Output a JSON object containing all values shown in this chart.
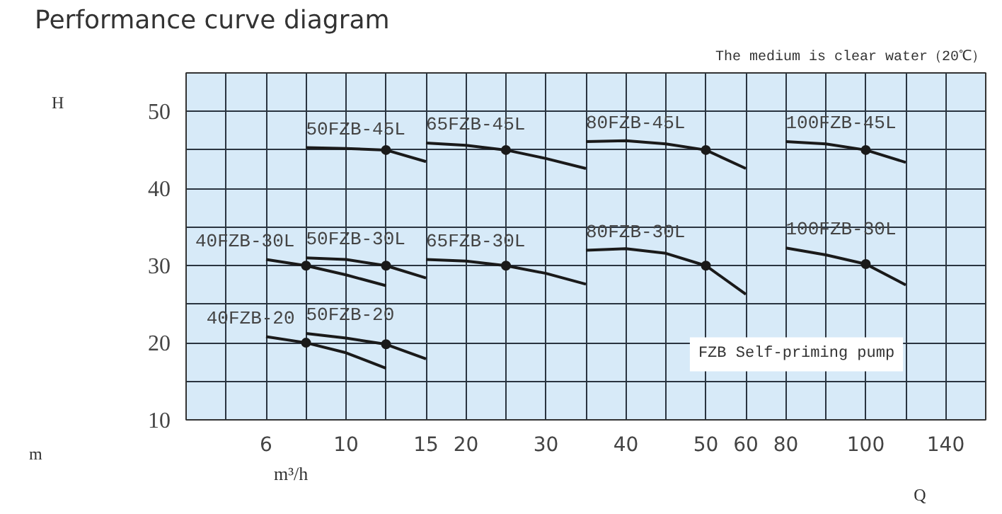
{
  "chart_data": {
    "type": "line",
    "title": "Performance curve diagram",
    "xlabel": "Q",
    "ylabel": "H",
    "annotations": [
      "The medium is clear water（20℃）",
      "FZB Self-priming pump",
      "m",
      "m³/h"
    ],
    "categories": [
      null,
      null,
      "6",
      null,
      "10",
      null,
      "15",
      "20",
      null,
      "30",
      null,
      "40",
      null,
      "50",
      "60",
      "80",
      null,
      "100",
      null,
      "140",
      null
    ],
    "ylim": [
      10,
      55
    ],
    "yticks": [
      10,
      {
        "value": 15,
        "label": null
      },
      20,
      {
        "value": 25,
        "label": null
      },
      30,
      {
        "value": 35,
        "label": null
      },
      40,
      {
        "value": 45,
        "label": null
      },
      50,
      {
        "value": 55,
        "label": null
      }
    ],
    "grid": true,
    "legend": false,
    "series": [
      {
        "name": "50FZB-45L",
        "color": "#1a1a1a",
        "values": [
          null,
          null,
          null,
          45.3,
          45.2,
          45.0,
          43.5,
          null,
          null,
          null,
          null,
          null,
          null,
          null,
          null,
          null,
          null,
          null,
          null,
          null,
          null
        ]
      },
      {
        "name": "65FZB-45L",
        "color": "#1a1a1a",
        "values": [
          null,
          null,
          null,
          null,
          null,
          null,
          45.9,
          45.6,
          45.0,
          43.9,
          42.6,
          null,
          null,
          null,
          null,
          null,
          null,
          null,
          null,
          null,
          null
        ]
      },
      {
        "name": "80FZB-45L",
        "color": "#1a1a1a",
        "values": [
          null,
          null,
          null,
          null,
          null,
          null,
          null,
          null,
          null,
          null,
          46.1,
          46.2,
          45.8,
          45.0,
          42.6,
          null,
          null,
          null,
          null,
          null,
          null
        ]
      },
      {
        "name": "100FZB-45L",
        "color": "#1a1a1a",
        "values": [
          null,
          null,
          null,
          null,
          null,
          null,
          null,
          null,
          null,
          null,
          null,
          null,
          null,
          null,
          null,
          46.1,
          45.8,
          45.0,
          43.4,
          null,
          null
        ]
      },
      {
        "name": "40FZB-30L",
        "color": "#1a1a1a",
        "values": [
          null,
          null,
          30.8,
          30.0,
          28.8,
          27.4,
          null,
          null,
          null,
          null,
          null,
          null,
          null,
          null,
          null,
          null,
          null,
          null,
          null,
          null,
          null
        ]
      },
      {
        "name": "50FZB-30L",
        "color": "#1a1a1a",
        "values": [
          null,
          null,
          null,
          31.0,
          30.8,
          30.0,
          28.4,
          null,
          null,
          null,
          null,
          null,
          null,
          null,
          null,
          null,
          null,
          null,
          null,
          null,
          null
        ]
      },
      {
        "name": "65FZB-30L",
        "color": "#1a1a1a",
        "values": [
          null,
          null,
          null,
          null,
          null,
          null,
          30.8,
          30.6,
          30.0,
          29.0,
          27.6,
          null,
          null,
          null,
          null,
          null,
          null,
          null,
          null,
          null,
          null
        ]
      },
      {
        "name": "80FZB-30L",
        "color": "#1a1a1a",
        "values": [
          null,
          null,
          null,
          null,
          null,
          null,
          null,
          null,
          null,
          null,
          32.0,
          32.2,
          31.6,
          30.0,
          26.3,
          null,
          null,
          null,
          null,
          null,
          null
        ]
      },
      {
        "name": "100FZB-30L",
        "color": "#1a1a1a",
        "values": [
          null,
          null,
          null,
          null,
          null,
          null,
          null,
          null,
          null,
          null,
          null,
          null,
          null,
          null,
          null,
          32.3,
          31.4,
          30.2,
          27.5,
          null,
          null
        ]
      },
      {
        "name": "40FZB-20",
        "color": "#1a1a1a",
        "values": [
          null,
          null,
          20.8,
          20.0,
          18.7,
          16.7,
          null,
          null,
          null,
          null,
          null,
          null,
          null,
          null,
          null,
          null,
          null,
          null,
          null,
          null,
          null
        ]
      },
      {
        "name": "50FZB-20",
        "color": "#1a1a1a",
        "values": [
          null,
          null,
          null,
          21.2,
          20.6,
          19.8,
          17.9,
          null,
          null,
          null,
          null,
          null,
          null,
          null,
          null,
          null,
          null,
          null,
          null,
          null,
          null
        ]
      },
      {
        "type": "scatter",
        "marker": "circle",
        "color": "#1a1a1a",
        "values": [
          null,
          null,
          null,
          null,
          null,
          45.0,
          null,
          null,
          45.0,
          null,
          null,
          null,
          null,
          45.0,
          null,
          null,
          null,
          45.0,
          null,
          null,
          null
        ]
      },
      {
        "type": "scatter",
        "marker": "circle",
        "color": "#1a1a1a",
        "values": [
          null,
          null,
          null,
          30.0,
          null,
          30.0,
          null,
          null,
          30.0,
          null,
          null,
          null,
          null,
          30.0,
          null,
          null,
          null,
          30.2,
          null,
          null,
          null
        ]
      },
      {
        "type": "scatter",
        "marker": "circle",
        "color": "#1a1a1a",
        "values": [
          null,
          null,
          null,
          20.0,
          null,
          19.8,
          null,
          null,
          null,
          null,
          null,
          null,
          null,
          null,
          null,
          null,
          null,
          null,
          null,
          null,
          null
        ]
      }
    ]
  }
}
